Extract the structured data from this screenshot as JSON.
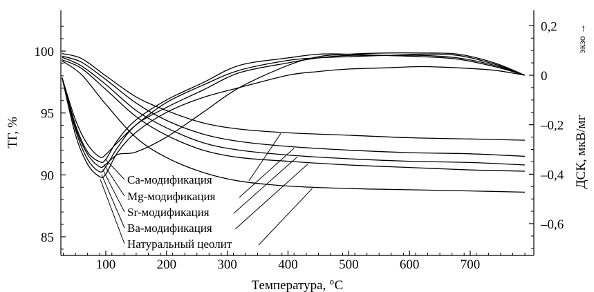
{
  "chart_data": {
    "type": "line",
    "xlabel": "Температура, °C",
    "ylabel_left": "ТГ, %",
    "ylabel_right": "ДСК, мкВ/мг",
    "exo_label": "экзо →",
    "xlim": [
      20,
      800
    ],
    "ylim_left": [
      83.5,
      103
    ],
    "ylim_right": [
      -0.75,
      0.26
    ],
    "x_ticks": [
      100,
      200,
      300,
      400,
      500,
      600,
      700
    ],
    "x_tick_labels": [
      "100",
      "200",
      "300",
      "400",
      "500",
      "600",
      "700"
    ],
    "y_left_ticks": [
      85,
      90,
      95,
      100
    ],
    "y_left_tick_labels": [
      "85",
      "90",
      "95",
      "100"
    ],
    "y_right_ticks": [
      0.2,
      0,
      -0.2,
      -0.4,
      -0.6
    ],
    "y_right_tick_labels": [
      "0,2",
      "0",
      "–0,2",
      "–0,4",
      "–0,6"
    ],
    "grid": false,
    "series": [
      {
        "name": "Ca-модификация",
        "tg": {
          "x": [
            28,
            60,
            100,
            150,
            200,
            260,
            320,
            400,
            500,
            600,
            700,
            790
          ],
          "y": [
            99.8,
            99.4,
            98.0,
            96.3,
            95.2,
            94.2,
            93.7,
            93.4,
            93.2,
            93.0,
            92.9,
            92.8
          ]
        },
        "dsc": {
          "x": [
            28,
            50,
            70,
            90,
            100,
            120,
            150,
            200,
            260,
            320,
            400,
            450,
            500,
            560,
            620,
            680,
            740,
            790
          ],
          "y": [
            -0.01,
            -0.18,
            -0.28,
            -0.33,
            -0.32,
            -0.27,
            -0.2,
            -0.11,
            -0.04,
            0.02,
            0.06,
            0.07,
            0.075,
            0.08,
            0.08,
            0.07,
            0.04,
            0.0
          ]
        }
      },
      {
        "name": "Mg-модификация",
        "tg": {
          "x": [
            28,
            60,
            100,
            150,
            200,
            260,
            320,
            400,
            500,
            600,
            700,
            790
          ],
          "y": [
            99.6,
            99.1,
            97.7,
            95.8,
            94.4,
            93.3,
            92.7,
            92.3,
            92.0,
            91.8,
            91.7,
            91.5
          ]
        },
        "dsc": {
          "x": [
            28,
            50,
            70,
            90,
            100,
            120,
            150,
            200,
            260,
            320,
            400,
            450,
            500,
            560,
            620,
            680,
            740,
            790
          ],
          "y": [
            -0.01,
            -0.2,
            -0.31,
            -0.35,
            -0.34,
            -0.26,
            -0.18,
            -0.1,
            -0.03,
            0.04,
            0.07,
            0.085,
            0.085,
            0.08,
            0.075,
            0.065,
            0.035,
            0.0
          ]
        }
      },
      {
        "name": "Sr-модификация",
        "tg": {
          "x": [
            28,
            60,
            100,
            150,
            200,
            260,
            320,
            400,
            500,
            600,
            700,
            790
          ],
          "y": [
            99.5,
            98.8,
            97.3,
            95.2,
            93.8,
            92.6,
            92.0,
            91.6,
            91.3,
            91.1,
            91.0,
            90.8
          ]
        },
        "dsc": {
          "x": [
            28,
            50,
            70,
            90,
            100,
            120,
            150,
            200,
            260,
            320,
            400,
            450,
            500,
            560,
            620,
            680,
            740,
            790
          ],
          "y": [
            -0.01,
            -0.21,
            -0.32,
            -0.37,
            -0.36,
            -0.32,
            -0.31,
            -0.25,
            -0.15,
            -0.05,
            0.04,
            0.075,
            0.085,
            0.09,
            0.09,
            0.085,
            0.05,
            0.0
          ]
        }
      },
      {
        "name": "Ba-модификация",
        "tg": {
          "x": [
            28,
            60,
            100,
            150,
            200,
            260,
            320,
            400,
            500,
            600,
            700,
            790
          ],
          "y": [
            99.3,
            98.6,
            96.9,
            94.7,
            93.2,
            92.0,
            91.4,
            91.1,
            90.8,
            90.6,
            90.4,
            90.3
          ]
        },
        "dsc": {
          "x": [
            28,
            50,
            70,
            90,
            100,
            120,
            150,
            200,
            260,
            320,
            400,
            450,
            500,
            560,
            620,
            680,
            740,
            790
          ],
          "y": [
            -0.01,
            -0.22,
            -0.34,
            -0.39,
            -0.37,
            -0.29,
            -0.2,
            -0.13,
            -0.06,
            0.01,
            0.05,
            0.07,
            0.08,
            0.08,
            0.085,
            0.08,
            0.045,
            0.0
          ]
        }
      },
      {
        "name": "Натуральный цеолит",
        "tg": {
          "x": [
            28,
            60,
            100,
            150,
            200,
            260,
            320,
            400,
            500,
            600,
            700,
            790
          ],
          "y": [
            99.2,
            98.1,
            95.7,
            93.0,
            91.4,
            90.2,
            89.5,
            89.1,
            88.9,
            88.8,
            88.7,
            88.6
          ]
        },
        "dsc": {
          "x": [
            28,
            50,
            70,
            90,
            100,
            120,
            150,
            200,
            260,
            320,
            400,
            450,
            500,
            560,
            620,
            680,
            740,
            790
          ],
          "y": [
            -0.01,
            -0.24,
            -0.36,
            -0.41,
            -0.4,
            -0.31,
            -0.23,
            -0.15,
            -0.09,
            -0.05,
            0.0,
            0.015,
            0.025,
            0.03,
            0.035,
            0.03,
            0.02,
            0.0
          ]
        }
      }
    ],
    "labels": [
      "Ca-модификация",
      "Mg-модификация",
      "Sr-модификация",
      "Ba-модификация",
      "Натуральный цеолит"
    ]
  }
}
